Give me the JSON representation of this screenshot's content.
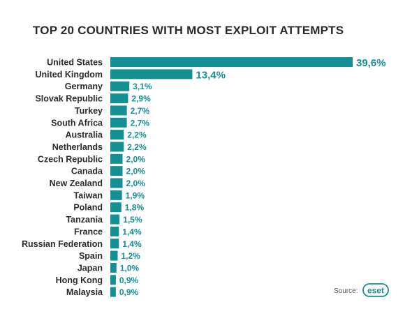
{
  "chart_data": {
    "type": "bar",
    "orientation": "horizontal",
    "title": "TOP 20 COUNTRIES WITH MOST EXPLOIT ATTEMPTS",
    "categories": [
      "United States",
      "United Kingdom",
      "Germany",
      "Slovak Republic",
      "Turkey",
      "South Africa",
      "Australia",
      "Netherlands",
      "Czech Republic",
      "Canada",
      "New Zealand",
      "Taiwan",
      "Poland",
      "Tanzania",
      "France",
      "Russian Federation",
      "Spain",
      "Japan",
      "Hong Kong",
      "Malaysia"
    ],
    "values": [
      39.6,
      13.4,
      3.1,
      2.9,
      2.7,
      2.7,
      2.2,
      2.2,
      2.0,
      2.0,
      2.0,
      1.9,
      1.8,
      1.5,
      1.4,
      1.4,
      1.2,
      1.0,
      0.9,
      0.9
    ],
    "value_labels": [
      "39,6%",
      "13,4%",
      "3,1%",
      "2,9%",
      "2,7%",
      "2,7%",
      "2,2%",
      "2,2%",
      "2,0%",
      "2,0%",
      "2,0%",
      "1,9%",
      "1,8%",
      "1,5%",
      "1,4%",
      "1,4%",
      "1,2%",
      "1,0%",
      "0,9%",
      "0,9%"
    ],
    "xlim": [
      0,
      39.6
    ],
    "bar_color": "#148f94",
    "grid": false,
    "legend": "none"
  },
  "source": {
    "label": "Source:",
    "logo_text": "eset"
  },
  "colors": {
    "title": "#2b2b2b",
    "accent": "#148f94"
  }
}
